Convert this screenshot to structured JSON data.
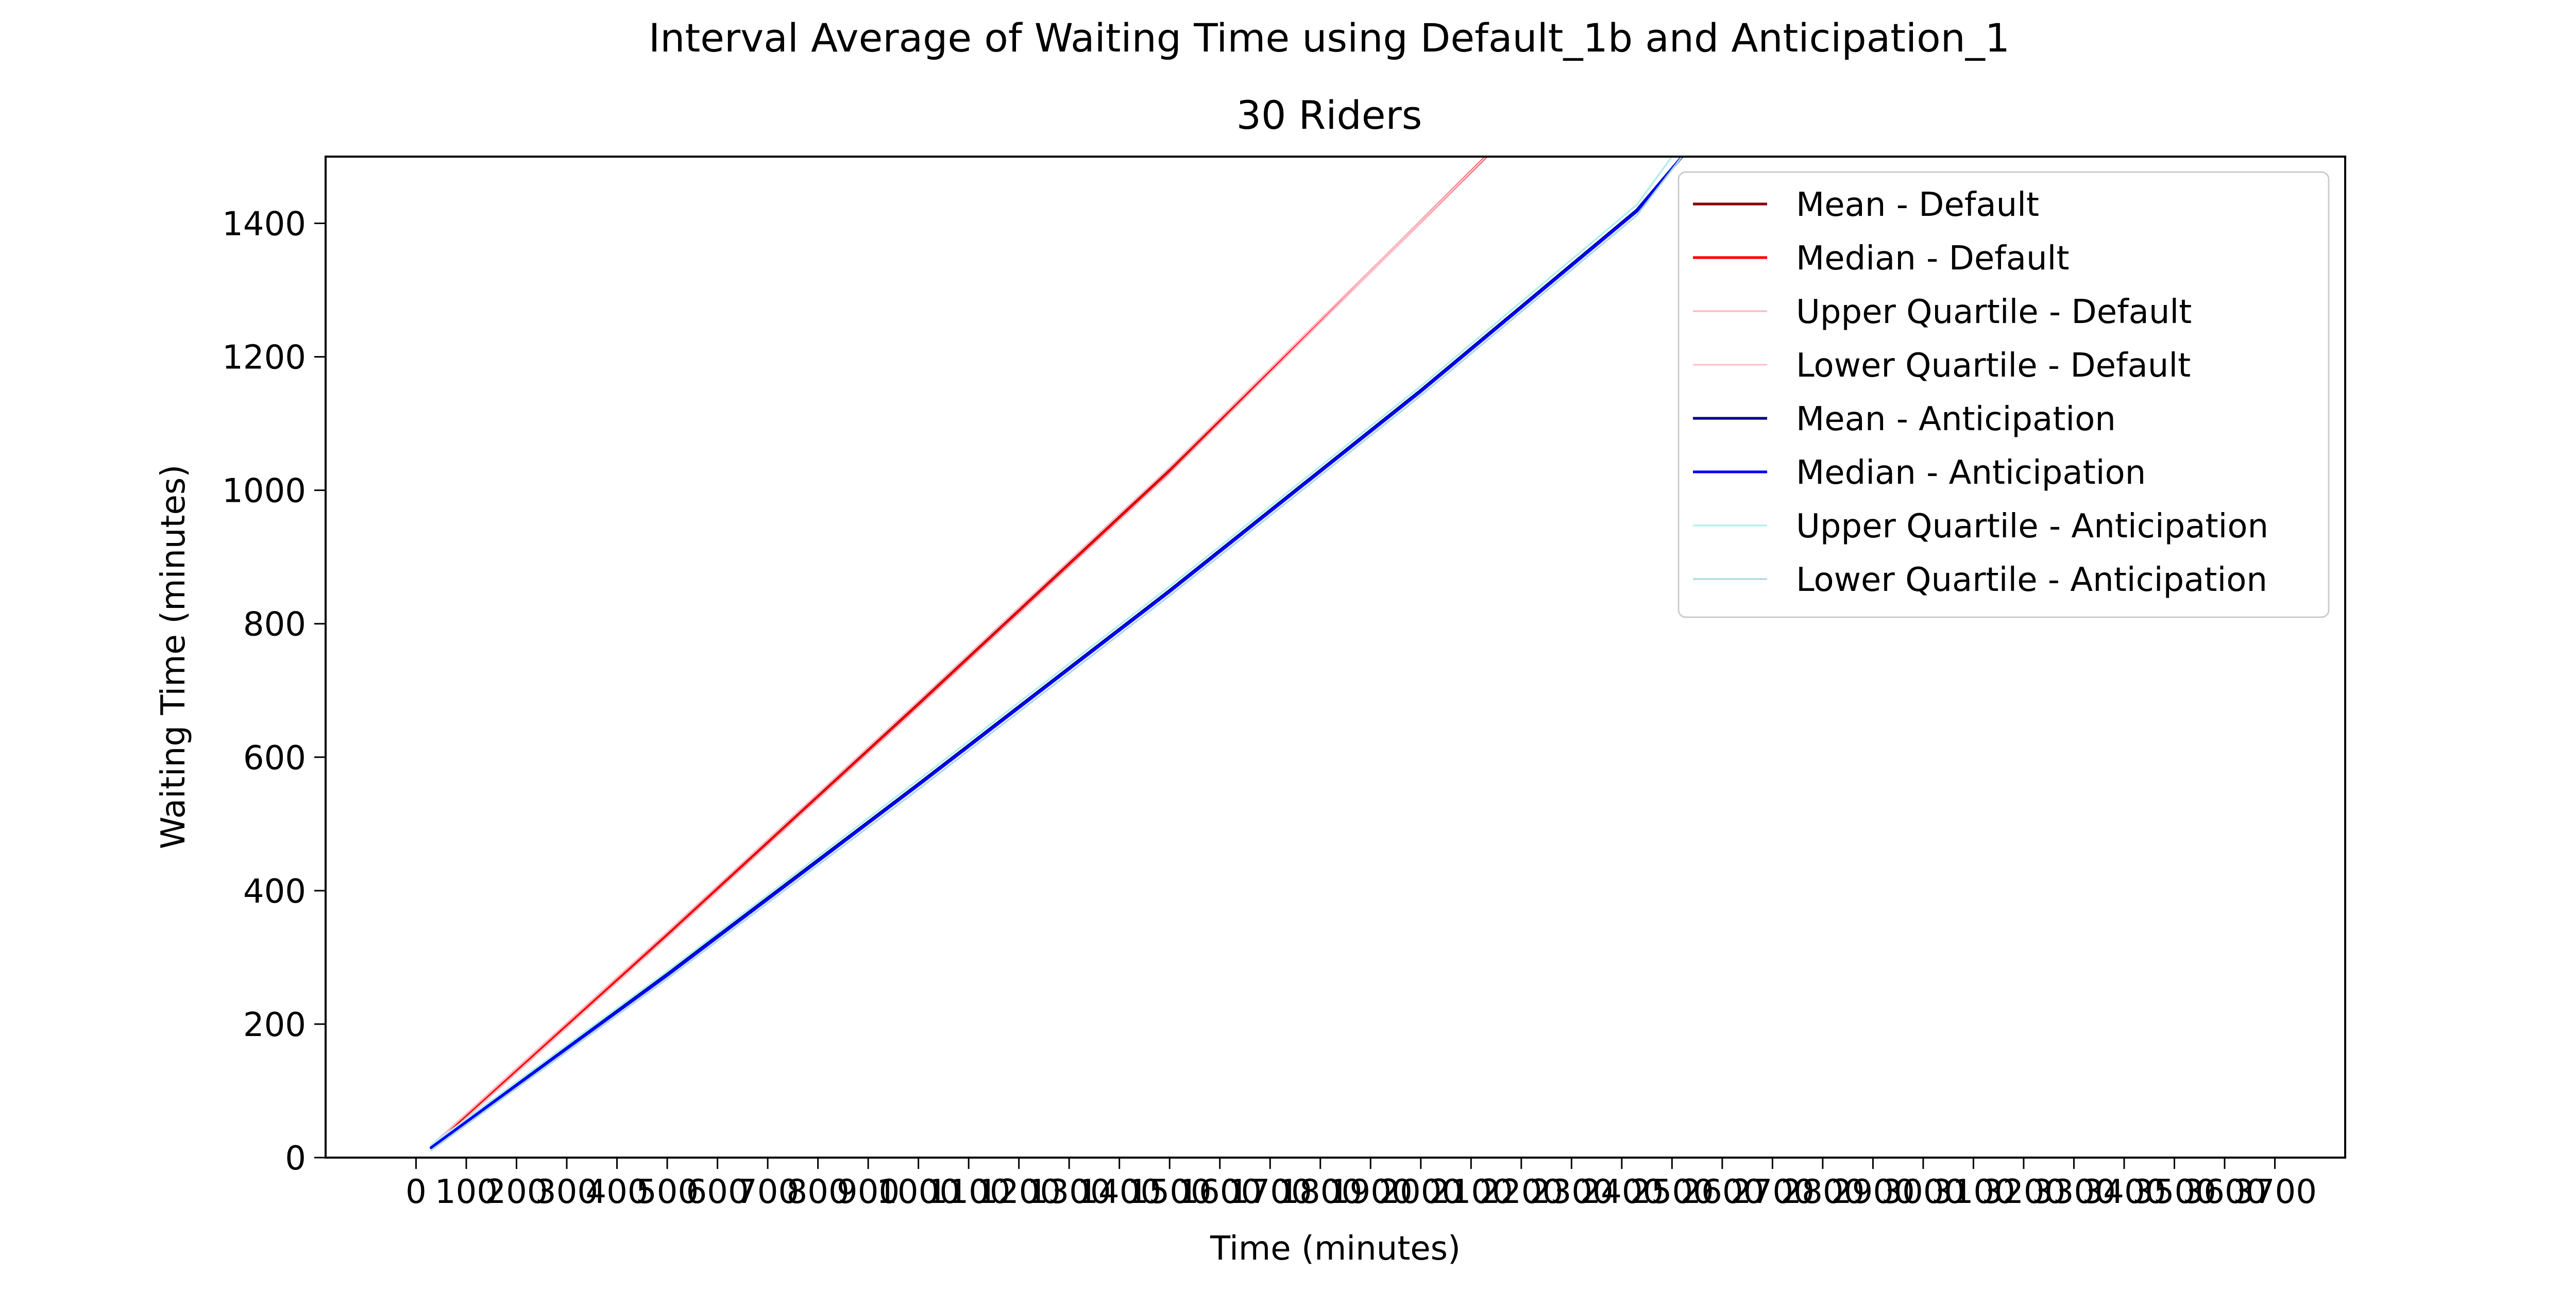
{
  "chart_data": {
    "type": "line",
    "title": "Interval Average of Waiting Time using Default_1b and Anticipation_1",
    "subtitle": "30 Riders",
    "xlabel": "Time (minutes)",
    "ylabel": "Waiting Time (minutes)",
    "xlim": [
      -180,
      3840
    ],
    "ylim": [
      0,
      1500
    ],
    "grid": false,
    "legend_position": "top-right",
    "x_ticks": [
      0,
      100,
      200,
      300,
      400,
      500,
      600,
      700,
      800,
      900,
      1000,
      1100,
      1200,
      1300,
      1400,
      1500,
      1600,
      1700,
      1800,
      1900,
      2000,
      2100,
      2200,
      2300,
      2400,
      2500,
      2600,
      2700,
      2800,
      2900,
      3000,
      3100,
      3200,
      3300,
      3400,
      3500,
      3600,
      3700
    ],
    "x_tick_labels": [
      "0",
      "100",
      "200",
      "300",
      "400",
      "500",
      "600",
      "700",
      "800",
      "900",
      "1000",
      "1100",
      "1200",
      "1300",
      "1400",
      "1500",
      "1600",
      "1700",
      "1800",
      "1900",
      "2000",
      "2100",
      "2200",
      "2300",
      "2400",
      "2500",
      "2600",
      "2700",
      "2800",
      "2900",
      "3000",
      "3100",
      "3200",
      "3300",
      "3400",
      "3500",
      "3600",
      "3700"
    ],
    "y_ticks": [
      0,
      200,
      400,
      600,
      800,
      1000,
      1200,
      1400
    ],
    "y_tick_labels": [
      "0",
      "200",
      "400",
      "600",
      "800",
      "1000",
      "1200",
      "1400"
    ],
    "series": [
      {
        "name": "Mean - Default",
        "color": "#8b0000",
        "width": 2.2,
        "x": [
          30,
          500,
          1000,
          1500,
          2130
        ],
        "y": [
          15,
          335,
          680,
          1030,
          1500
        ]
      },
      {
        "name": "Median - Default",
        "color": "#ff0000",
        "width": 2.2,
        "x": [
          30,
          500,
          1000,
          1500,
          2130
        ],
        "y": [
          15,
          333,
          678,
          1028,
          1500
        ]
      },
      {
        "name": "Upper Quartile - Default",
        "color": "#ffb6c1",
        "width": 1.4,
        "x": [
          30,
          500,
          1000,
          1500,
          2130
        ],
        "y": [
          18,
          338,
          684,
          1034,
          1500
        ]
      },
      {
        "name": "Lower Quartile - Default",
        "color": "#ffc0cb",
        "width": 1.4,
        "x": [
          30,
          500,
          1000,
          1500,
          2130
        ],
        "y": [
          12,
          330,
          675,
          1025,
          1500
        ]
      },
      {
        "name": "Mean - Anticipation",
        "color": "#00008b",
        "width": 2.2,
        "x": [
          30,
          500,
          1000,
          1500,
          2000,
          2430,
          2520
        ],
        "y": [
          15,
          275,
          560,
          850,
          1150,
          1420,
          1500
        ]
      },
      {
        "name": "Median - Anticipation",
        "color": "#0000ff",
        "width": 2.2,
        "x": [
          30,
          500,
          1000,
          1500,
          2000,
          2430,
          2520
        ],
        "y": [
          15,
          273,
          558,
          848,
          1148,
          1418,
          1500
        ]
      },
      {
        "name": "Upper Quartile - Anticipation",
        "color": "#afeeee",
        "width": 1.4,
        "x": [
          30,
          500,
          1000,
          1500,
          2000,
          2430,
          2500
        ],
        "y": [
          19,
          279,
          566,
          856,
          1156,
          1428,
          1500
        ]
      },
      {
        "name": "Lower Quartile - Anticipation",
        "color": "#add8e6",
        "width": 1.4,
        "x": [
          30,
          500,
          1000,
          1500,
          2000,
          2430,
          2520
        ],
        "y": [
          11,
          268,
          552,
          842,
          1142,
          1412,
          1500
        ]
      }
    ]
  }
}
